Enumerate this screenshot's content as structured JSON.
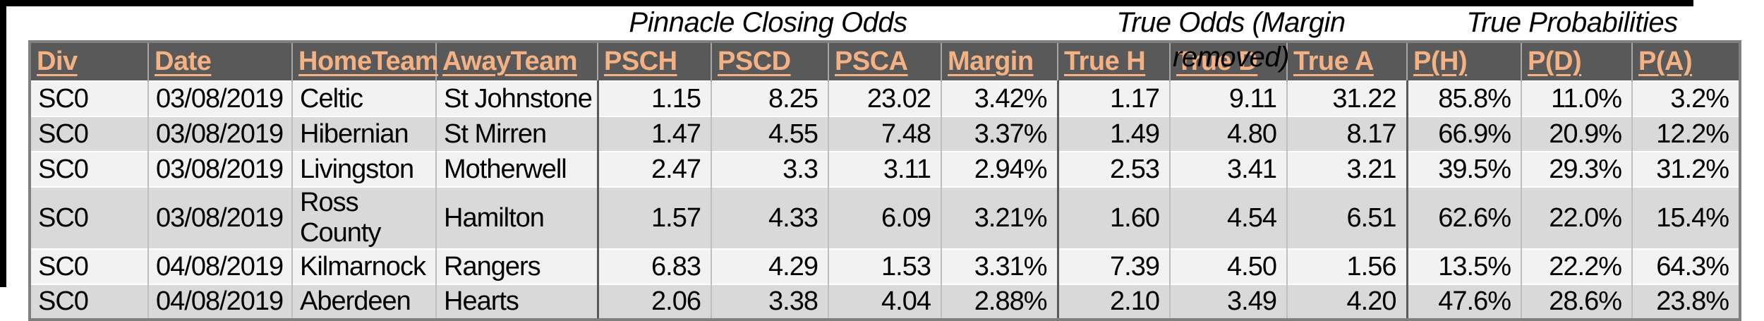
{
  "colors": {
    "header_bg": "#595959",
    "header_text": "#F4B183",
    "row_light": "#F2F2F2",
    "row_dark": "#D9D9D9",
    "frame": "#000000"
  },
  "group_headers": [
    {
      "label": "Pinnacle Closing Odds"
    },
    {
      "label": "True Odds (Margin removed)"
    },
    {
      "label": "True Probabilities"
    }
  ],
  "table": {
    "columns": [
      "Div",
      "Date",
      "HomeTeam",
      "AwayTeam",
      "PSCH",
      "PSCD",
      "PSCA",
      "Margin",
      "True H",
      "True D",
      "True A",
      "P(H)",
      "P(D)",
      "P(A)"
    ],
    "rows": [
      [
        "SC0",
        "03/08/2019",
        "Celtic",
        "St Johnstone",
        "1.15",
        "8.25",
        "23.02",
        "3.42%",
        "1.17",
        "9.11",
        "31.22",
        "85.8%",
        "11.0%",
        "3.2%"
      ],
      [
        "SC0",
        "03/08/2019",
        "Hibernian",
        "St Mirren",
        "1.47",
        "4.55",
        "7.48",
        "3.37%",
        "1.49",
        "4.80",
        "8.17",
        "66.9%",
        "20.9%",
        "12.2%"
      ],
      [
        "SC0",
        "03/08/2019",
        "Livingston",
        "Motherwell",
        "2.47",
        "3.3",
        "3.11",
        "2.94%",
        "2.53",
        "3.41",
        "3.21",
        "39.5%",
        "29.3%",
        "31.2%"
      ],
      [
        "SC0",
        "03/08/2019",
        "Ross County",
        "Hamilton",
        "1.57",
        "4.33",
        "6.09",
        "3.21%",
        "1.60",
        "4.54",
        "6.51",
        "62.6%",
        "22.0%",
        "15.4%"
      ],
      [
        "SC0",
        "04/08/2019",
        "Kilmarnock",
        "Rangers",
        "6.83",
        "4.29",
        "1.53",
        "3.31%",
        "7.39",
        "4.50",
        "1.56",
        "13.5%",
        "22.2%",
        "64.3%"
      ],
      [
        "SC0",
        "04/08/2019",
        "Aberdeen",
        "Hearts",
        "2.06",
        "3.38",
        "4.04",
        "2.88%",
        "2.10",
        "3.49",
        "4.20",
        "47.6%",
        "28.6%",
        "23.8%"
      ]
    ]
  }
}
